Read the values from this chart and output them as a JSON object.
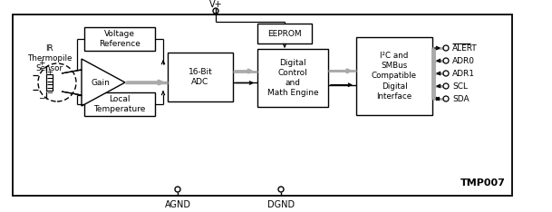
{
  "fig_width": 6.09,
  "fig_height": 2.34,
  "dpi": 100,
  "bg_color": "#ffffff",
  "title": "TMP007",
  "vplus_label": "V+",
  "agnd_label": "AGND",
  "dgnd_label": "DGND",
  "ir_label": "IR\nThermopile\nSensor",
  "voltage_ref_label": "Voltage\nReference",
  "gain_label": "Gain",
  "adc_label": "16-Bit\nADC",
  "eeprom_label": "EEPROM",
  "digital_label": "Digital\nControl\nand\nMath Engine",
  "interface_label": "I²C and\nSMBus\nCompatible\nDigital\nInterface",
  "pins": [
    "ALERT",
    "ADR0",
    "ADR1",
    "SCL",
    "SDA"
  ],
  "pin_arrows_out": [
    true,
    false,
    false,
    false,
    false
  ],
  "pin_arrows_in": [
    false,
    true,
    true,
    true,
    true
  ],
  "pin_bidir": [
    false,
    false,
    false,
    false,
    true
  ],
  "gray": "#aaaaaa",
  "black": "#000000"
}
